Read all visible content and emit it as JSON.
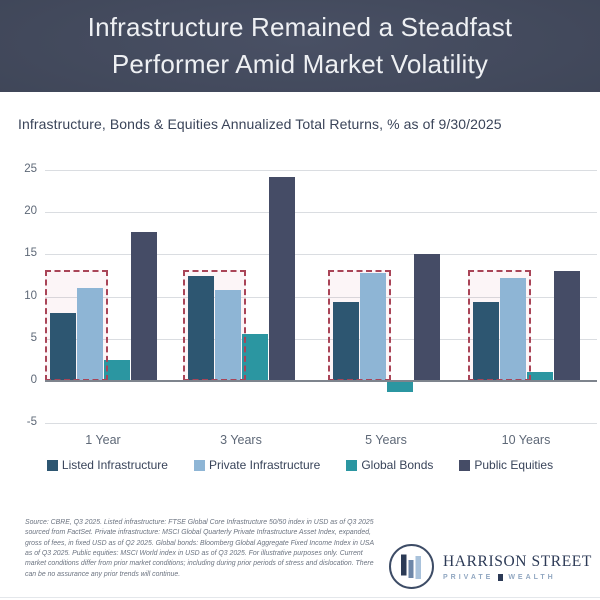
{
  "header": {
    "title": "Infrastructure Remained a Steadfast Performer Amid Market Volatility"
  },
  "chart_data": {
    "type": "bar",
    "title": "Infrastructure, Bonds & Equities Annualized Total Returns, % as of 9/30/2025",
    "categories": [
      "1 Year",
      "3 Years",
      "5 Years",
      "10 Years"
    ],
    "series": [
      {
        "name": "Listed Infrastructure",
        "color": "#2d5671",
        "values": [
          8.0,
          12.4,
          9.4,
          9.4
        ]
      },
      {
        "name": "Private Infrastructure",
        "color": "#8eb5d5",
        "values": [
          11.0,
          10.8,
          12.8,
          12.2
        ]
      },
      {
        "name": "Global Bonds",
        "color": "#2b96a1",
        "values": [
          2.5,
          5.5,
          -1.3,
          1.0
        ]
      },
      {
        "name": "Public Equities",
        "color": "#454c66",
        "values": [
          17.6,
          24.2,
          15.0,
          13.0
        ]
      }
    ],
    "ylim": [
      -5,
      25
    ],
    "yticks": [
      25,
      20,
      15,
      10,
      5,
      0,
      -5
    ],
    "grid": true,
    "legend_position": "bottom",
    "highlight_box": {
      "around_series": [
        "Listed Infrastructure",
        "Private Infrastructure"
      ],
      "top_value": 13.2,
      "border_color": "#a94457"
    }
  },
  "footer": {
    "source_text": "Source: CBRE, Q3 2025. Listed infrastructure: FTSE Global Core Infrastructure 50/50 index in USD as of Q3 2025 sourced from FactSet. Private infrastructure: MSCI Global Quarterly Private Infrastructure Asset Index, expanded, gross of fees, in fixed USD as of Q2 2025. Global bonds: Bloomberg Global Aggregate Fixed Income Index in USA as of Q3 2025. Public equities: MSCI World index in USD as of Q3 2025. For illustrative purposes only. Current market conditions differ from prior market conditions; including during prior periods of stress and dislocation. There can be no assurance any prior trends will continue.",
    "logo": {
      "name": "HARRISON STREET",
      "tagline_left": "PRIVATE",
      "tagline_right": "WEALTH"
    }
  }
}
